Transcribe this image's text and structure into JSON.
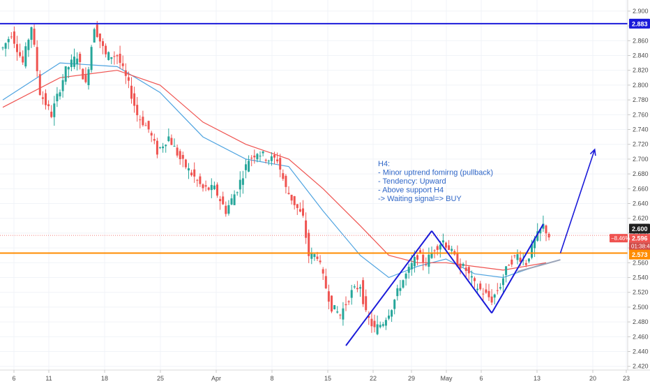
{
  "chart_data": {
    "type": "candlestick",
    "y_axis": {
      "range": [
        2.415,
        2.915
      ],
      "ticks": [
        "2.900",
        "2.880",
        "2.860",
        "2.840",
        "2.820",
        "2.800",
        "2.780",
        "2.760",
        "2.740",
        "2.720",
        "2.700",
        "2.680",
        "2.660",
        "2.640",
        "2.620",
        "2.600",
        "2.580",
        "2.560",
        "2.540",
        "2.520",
        "2.500",
        "2.480",
        "2.460",
        "2.440",
        "2.420"
      ],
      "position": "right"
    },
    "x_axis": {
      "ticks": [
        "6",
        "11",
        "18",
        "25",
        "Apr",
        "8",
        "15",
        "22",
        "29",
        "May",
        "6",
        "13",
        "20",
        "23"
      ]
    },
    "grid": true,
    "price_path": [
      [
        0,
        2.85
      ],
      [
        3,
        2.87
      ],
      [
        7,
        2.83
      ],
      [
        10,
        2.88
      ],
      [
        13,
        2.79
      ],
      [
        17,
        2.76
      ],
      [
        22,
        2.82
      ],
      [
        26,
        2.84
      ],
      [
        29,
        2.8
      ],
      [
        32,
        2.88
      ],
      [
        36,
        2.84
      ],
      [
        40,
        2.84
      ],
      [
        44,
        2.8
      ],
      [
        47,
        2.76
      ],
      [
        51,
        2.74
      ],
      [
        54,
        2.71
      ],
      [
        58,
        2.73
      ],
      [
        62,
        2.7
      ],
      [
        66,
        2.68
      ],
      [
        70,
        2.66
      ],
      [
        74,
        2.66
      ],
      [
        78,
        2.63
      ],
      [
        82,
        2.66
      ],
      [
        86,
        2.7
      ],
      [
        89,
        2.71
      ],
      [
        93,
        2.7
      ],
      [
        96,
        2.7
      ],
      [
        99,
        2.66
      ],
      [
        102,
        2.64
      ],
      [
        105,
        2.62
      ],
      [
        107,
        2.57
      ],
      [
        110,
        2.57
      ],
      [
        112,
        2.54
      ],
      [
        115,
        2.5
      ],
      [
        118,
        2.49
      ],
      [
        122,
        2.52
      ],
      [
        125,
        2.53
      ],
      [
        127,
        2.49
      ],
      [
        130,
        2.47
      ],
      [
        133,
        2.48
      ],
      [
        136,
        2.5
      ],
      [
        139,
        2.53
      ],
      [
        142,
        2.55
      ],
      [
        145,
        2.57
      ],
      [
        148,
        2.56
      ],
      [
        151,
        2.58
      ],
      [
        154,
        2.59
      ],
      [
        156,
        2.58
      ],
      [
        159,
        2.56
      ],
      [
        162,
        2.55
      ],
      [
        165,
        2.53
      ],
      [
        168,
        2.52
      ],
      [
        171,
        2.51
      ],
      [
        174,
        2.53
      ],
      [
        177,
        2.56
      ],
      [
        180,
        2.57
      ],
      [
        183,
        2.56
      ],
      [
        186,
        2.59
      ],
      [
        189,
        2.61
      ],
      [
        191,
        2.596
      ]
    ],
    "series": [
      {
        "name": "",
        "color": "#4ea3e0",
        "values": [
          [
            0,
            2.78
          ],
          [
            20,
            2.83
          ],
          [
            40,
            2.825
          ],
          [
            55,
            2.79
          ],
          [
            70,
            2.73
          ],
          [
            85,
            2.7
          ],
          [
            100,
            2.69
          ],
          [
            112,
            2.63
          ],
          [
            125,
            2.57
          ],
          [
            135,
            2.54
          ],
          [
            145,
            2.555
          ],
          [
            155,
            2.565
          ],
          [
            165,
            2.545
          ],
          [
            175,
            2.54
          ],
          [
            190,
            2.56
          ]
        ]
      },
      {
        "name": "",
        "color": "#ef5350",
        "values": [
          [
            0,
            2.77
          ],
          [
            20,
            2.81
          ],
          [
            40,
            2.82
          ],
          [
            55,
            2.8
          ],
          [
            70,
            2.75
          ],
          [
            85,
            2.72
          ],
          [
            100,
            2.7
          ],
          [
            112,
            2.66
          ],
          [
            125,
            2.61
          ],
          [
            135,
            2.57
          ],
          [
            145,
            2.56
          ],
          [
            155,
            2.56
          ],
          [
            165,
            2.555
          ],
          [
            175,
            2.55
          ],
          [
            190,
            2.56
          ]
        ]
      }
    ],
    "horizontal_levels": [
      {
        "value": 2.883,
        "label": "2.883",
        "color": "#1a1ad9"
      },
      {
        "value": 2.573,
        "label": "2.573",
        "color": "#ff8c00"
      },
      {
        "value": 2.6,
        "label": "2.600",
        "color": "#1f1f1f"
      }
    ],
    "current_price": {
      "value": 2.596,
      "label": "2.596",
      "change": "−8.46%",
      "countdown": "01:38:43",
      "color": "#ef5350"
    },
    "pattern_lines": [
      [
        [
          120,
          2.448
        ],
        [
          150,
          2.603
        ]
      ],
      [
        [
          150,
          2.603
        ],
        [
          171,
          2.492
        ]
      ],
      [
        [
          171,
          2.492
        ],
        [
          189,
          2.612
        ]
      ]
    ],
    "support_line": [
      [
        180,
        2.548
      ],
      [
        195,
        2.564
      ]
    ],
    "arrow": [
      [
        195,
        2.573
      ],
      [
        207,
        2.713
      ]
    ],
    "annotation": [
      "H4:",
      "- Minor uptrend fomirng (pullback)",
      "- Tendency: Upward",
      "- Above support H4",
      "-> Waiting signal=> BUY"
    ]
  }
}
